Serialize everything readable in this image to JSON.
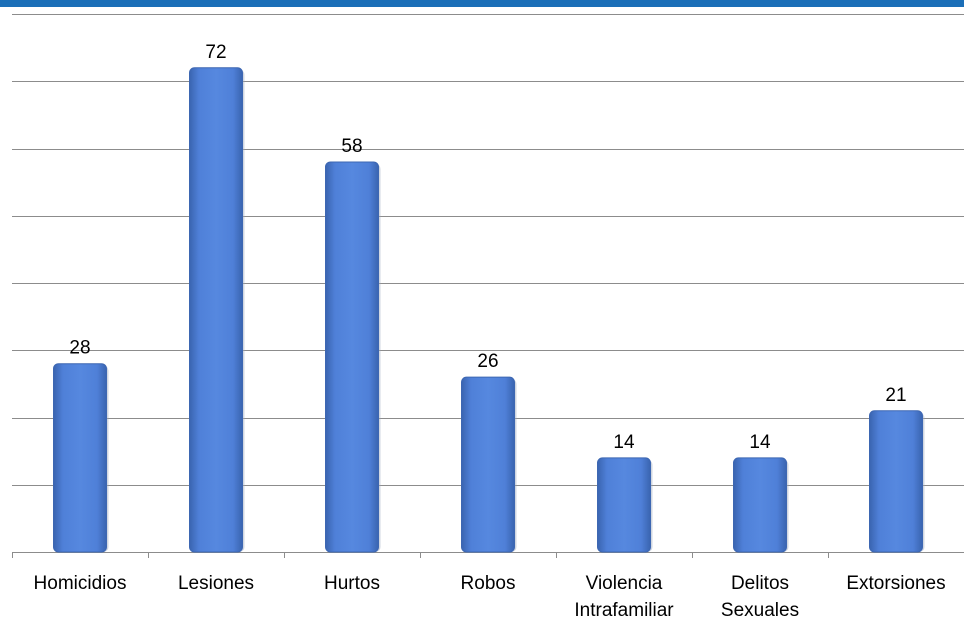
{
  "colors": {
    "top_band": "#1b6fb8",
    "bar_fill": "#4a7bd3",
    "bar_edge": "#3d67b2",
    "grid": "#8c8c8c",
    "axis": "#8c8c8c"
  },
  "chart_data": {
    "type": "bar",
    "title": "",
    "xlabel": "",
    "ylabel": "",
    "categories": [
      [
        "Homicidios"
      ],
      [
        "Lesiones"
      ],
      [
        "Hurtos"
      ],
      [
        "Robos"
      ],
      [
        "Violencia",
        "Intrafamiliar"
      ],
      [
        "Delitos",
        "Sexuales"
      ],
      [
        "Extorsiones"
      ]
    ],
    "values": [
      28,
      72,
      58,
      26,
      14,
      14,
      21
    ],
    "data_labels": [
      "28",
      "72",
      "58",
      "26",
      "14",
      "14",
      "21"
    ],
    "ylim": [
      0,
      80
    ],
    "gridlines": true,
    "y_axis_labels": false,
    "legend": "none"
  }
}
